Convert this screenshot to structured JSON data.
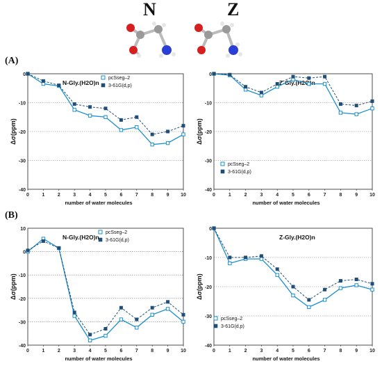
{
  "header": {
    "left_molecule_label": "N",
    "right_molecule_label": "Z",
    "section_a_label": "(A)",
    "section_b_label": "(B)"
  },
  "colors": {
    "series_pcsseg": "#1a8fcf",
    "series_631g": "#1f4e79",
    "grid": "#808080"
  },
  "chart_data": [
    {
      "type": "line",
      "title": "N-Gly.(H2O)n",
      "xlabel": "number of  water molecules",
      "ylabel": "Δσ(ppm)",
      "x": [
        0,
        1,
        2,
        3,
        4,
        5,
        6,
        7,
        8,
        9,
        10
      ],
      "xlim": [
        0,
        10
      ],
      "ylim": [
        -40,
        0
      ],
      "yticks": [
        0,
        -10,
        -20,
        -30,
        -40
      ],
      "grid": "horizontal dotted",
      "legend": "top-right",
      "series": [
        {
          "name": "pcSseg–2",
          "values": [
            0,
            -3.5,
            -4.2,
            -12.5,
            -14.5,
            -15,
            -19.5,
            -18.5,
            -24.5,
            -24,
            -21
          ]
        },
        {
          "name": "3-61G(d,p)",
          "values": [
            0,
            -2.5,
            -4,
            -10.5,
            -11.5,
            -12,
            -16,
            -15,
            -21,
            -20,
            -18
          ]
        }
      ]
    },
    {
      "type": "line",
      "title": "Z-Gly.(H2O)n",
      "xlabel": "number of  water molecules",
      "ylabel": "Δσ(ppm)",
      "x": [
        0,
        1,
        2,
        3,
        4,
        5,
        6,
        7,
        8,
        9,
        10
      ],
      "xlim": [
        0,
        10
      ],
      "ylim": [
        -40,
        0
      ],
      "yticks": [
        0,
        -10,
        -20,
        -30,
        -40
      ],
      "grid": "horizontal dotted",
      "legend": "bottom-left",
      "series": [
        {
          "name": "pcSseg–2",
          "values": [
            0,
            -0.5,
            -5.5,
            -7.5,
            -4.5,
            -2,
            -3.5,
            -3.5,
            -13.5,
            -14,
            -12
          ]
        },
        {
          "name": "3-61G(d,p)",
          "values": [
            0,
            -0.3,
            -4.5,
            -6.5,
            -3.5,
            -1,
            -1.5,
            -1,
            -10.5,
            -11,
            -9.5
          ]
        }
      ]
    },
    {
      "type": "line",
      "title": "N-Gly.(H2O)n",
      "xlabel": "number of  water molecules",
      "ylabel": "Δσ(ppm)",
      "x": [
        0,
        1,
        2,
        3,
        4,
        5,
        6,
        7,
        8,
        9,
        10
      ],
      "xlim": [
        0,
        10
      ],
      "ylim": [
        -40,
        10
      ],
      "yticks": [
        10,
        0,
        -10,
        -20,
        -30,
        -40
      ],
      "grid": "horizontal dotted",
      "legend": "top-right",
      "series": [
        {
          "name": "pcSseg–2",
          "values": [
            0,
            5.5,
            1.5,
            -27.5,
            -38,
            -36,
            -29,
            -32.5,
            -27,
            -24.5,
            -30
          ]
        },
        {
          "name": "3-61G(d,p)",
          "values": [
            0.5,
            4.5,
            1.5,
            -26,
            -35.5,
            -33,
            -24,
            -29,
            -24,
            -21.5,
            -27
          ]
        }
      ]
    },
    {
      "type": "line",
      "title": "Z-Gly.(H2O)n",
      "xlabel": "number of  water molecules",
      "ylabel": "Δσ(ppm)",
      "x": [
        0,
        1,
        2,
        3,
        4,
        5,
        6,
        7,
        8,
        9,
        10
      ],
      "xlim": [
        0,
        10
      ],
      "ylim": [
        -40,
        0
      ],
      "yticks": [
        0,
        -10,
        -20,
        -30,
        -40
      ],
      "grid": "horizontal dotted",
      "legend": "bottom-left",
      "series": [
        {
          "name": "pcSseg–2",
          "values": [
            0,
            -12,
            -10.5,
            -10.5,
            -16,
            -23,
            -27,
            -24.5,
            -20.5,
            -19.5,
            -21
          ]
        },
        {
          "name": "3-61G(d,p)",
          "values": [
            0,
            -10,
            -10,
            -9.5,
            -14,
            -20,
            -24.5,
            -21,
            -18,
            -17.5,
            -19
          ]
        }
      ]
    }
  ]
}
